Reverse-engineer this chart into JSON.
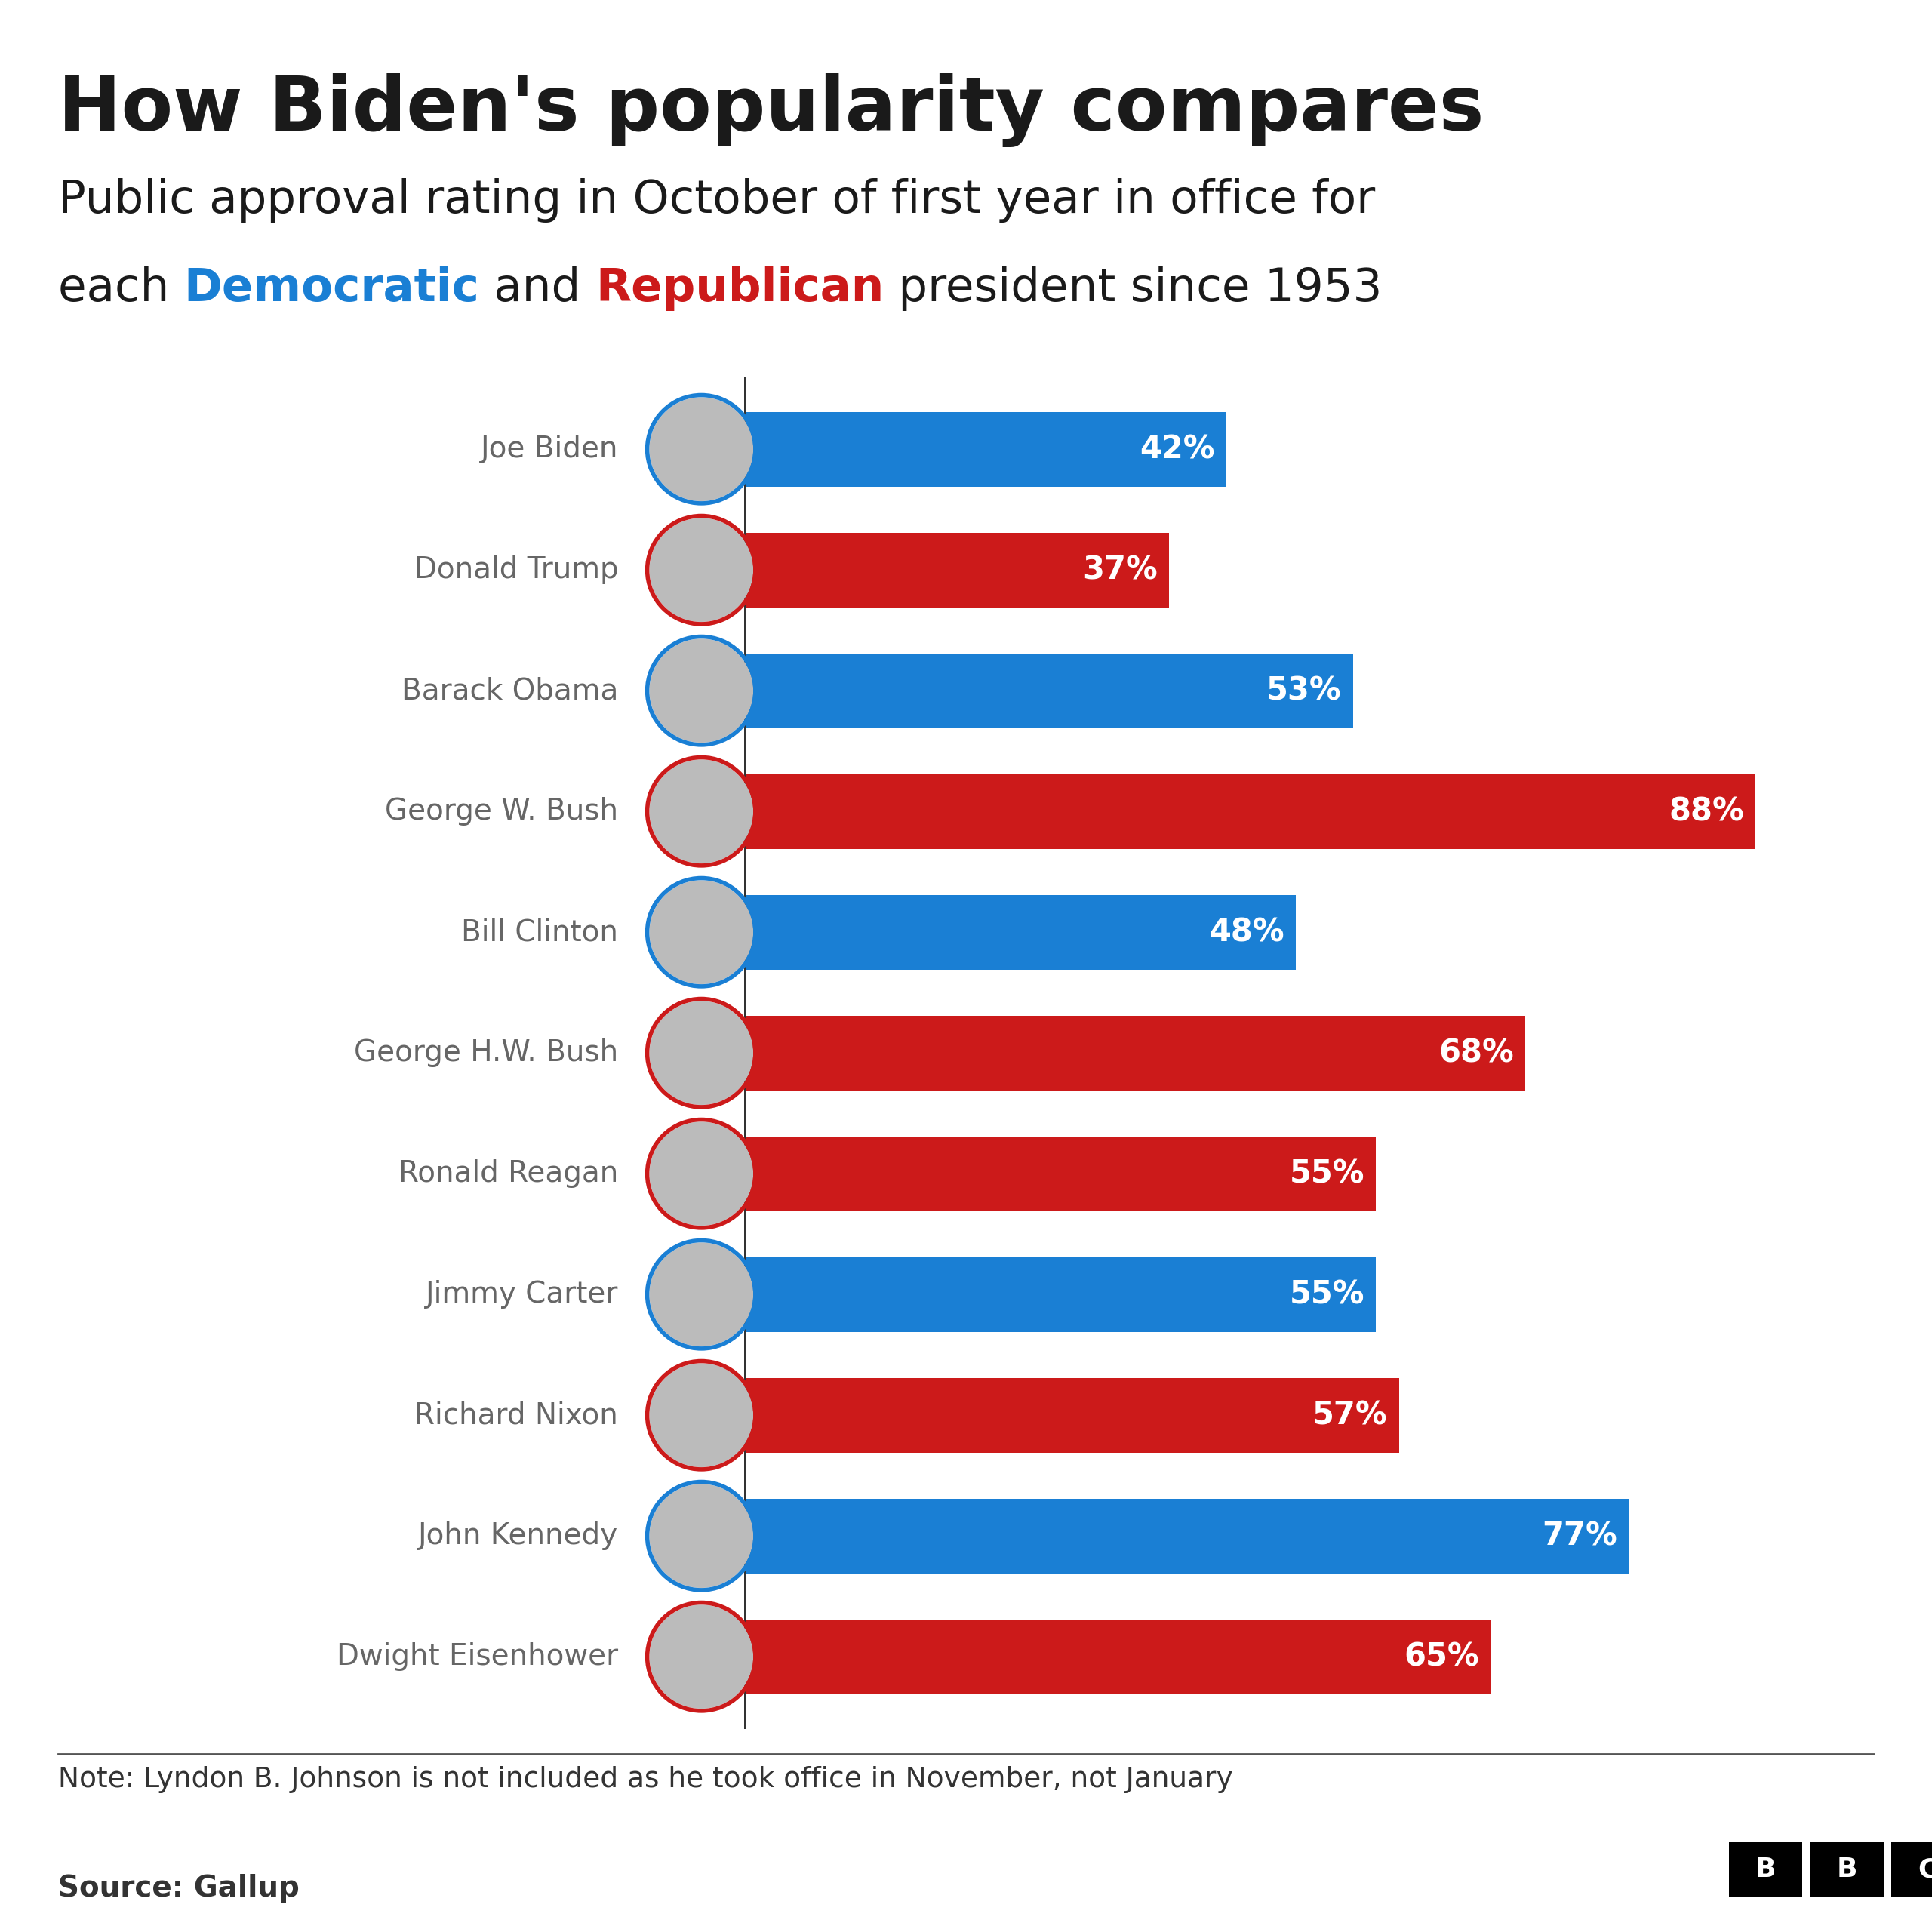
{
  "title": "How Biden's popularity compares",
  "subtitle_line1": "Public approval rating in October of first year in office for",
  "subtitle_line2_parts": [
    {
      "text": "each ",
      "color": "#1a1a1a",
      "bold": false
    },
    {
      "text": "Democratic",
      "color": "#1a7fd4",
      "bold": true
    },
    {
      "text": " and ",
      "color": "#1a1a1a",
      "bold": false
    },
    {
      "text": "Republican",
      "color": "#cc1a1a",
      "bold": true
    },
    {
      "text": " president since 1953",
      "color": "#1a1a1a",
      "bold": false
    }
  ],
  "note": "Note: Lyndon B. Johnson is not included as he took office in November, not January",
  "source": "Source: Gallup",
  "presidents": [
    {
      "name": "Joe Biden",
      "value": 42,
      "party": "Democrat"
    },
    {
      "name": "Donald Trump",
      "value": 37,
      "party": "Republican"
    },
    {
      "name": "Barack Obama",
      "value": 53,
      "party": "Democrat"
    },
    {
      "name": "George W. Bush",
      "value": 88,
      "party": "Republican"
    },
    {
      "name": "Bill Clinton",
      "value": 48,
      "party": "Democrat"
    },
    {
      "name": "George H.W. Bush",
      "value": 68,
      "party": "Republican"
    },
    {
      "name": "Ronald Reagan",
      "value": 55,
      "party": "Republican"
    },
    {
      "name": "Jimmy Carter",
      "value": 55,
      "party": "Democrat"
    },
    {
      "name": "Richard Nixon",
      "value": 57,
      "party": "Republican"
    },
    {
      "name": "John Kennedy",
      "value": 77,
      "party": "Democrat"
    },
    {
      "name": "Dwight Eisenhower",
      "value": 65,
      "party": "Republican"
    }
  ],
  "democrat_color": "#1a7fd4",
  "republican_color": "#cc1a1a",
  "bar_label_color": "#ffffff",
  "background_color": "#ffffff",
  "name_color": "#666666",
  "xlim": [
    0,
    100
  ]
}
